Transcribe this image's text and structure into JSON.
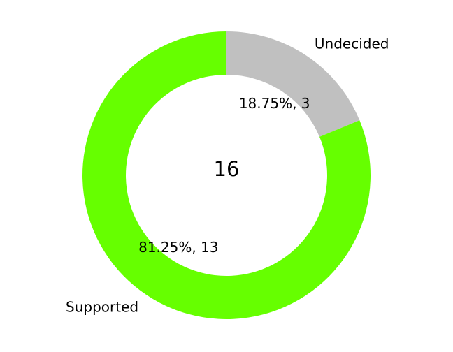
{
  "chart_data": {
    "type": "pie",
    "style": "donut",
    "center_label": "16",
    "slices": [
      {
        "name": "Undecided",
        "value": 3,
        "percent": 18.75,
        "label": "18.75%, 3",
        "color": "#c0c0c0"
      },
      {
        "name": "Supported",
        "value": 13,
        "percent": 81.25,
        "label": "81.25%, 13",
        "color": "#66ff00"
      }
    ],
    "start_angle": "12 o'clock",
    "direction": "clockwise",
    "legend": "none"
  }
}
